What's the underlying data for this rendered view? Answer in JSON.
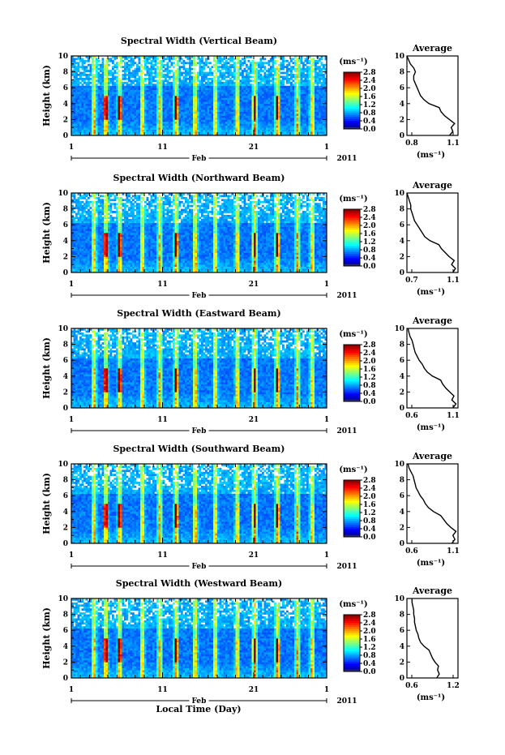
{
  "figure": {
    "xlabel": "Local Time (Day)",
    "month_label": "Feb",
    "year_label": "2011"
  },
  "chart_data": [
    {
      "type": "heatmap",
      "title": "Spectral Width (Vertical Beam)",
      "ylabel": "Height (km)",
      "ylim": [
        0,
        10
      ],
      "yticks": [
        "0",
        "2",
        "4",
        "6",
        "8",
        "10"
      ],
      "xlim": [
        1,
        29
      ],
      "xticks": [
        "1",
        "11",
        "21",
        "1"
      ],
      "colorbar": {
        "unit": "(ms⁻¹)",
        "range": [
          0,
          2.8
        ],
        "ticks": [
          "2.8",
          "2.4",
          "2.0",
          "1.6",
          "1.2",
          "0.8",
          "0.4",
          "0.0"
        ]
      },
      "average": {
        "title": "Average",
        "xlabel": "(ms⁻¹)",
        "xlim": [
          0.8,
          1.1
        ],
        "xticks": [
          "0.8",
          "1.1"
        ],
        "height": [
          0,
          0.5,
          1,
          1.5,
          2,
          2.5,
          3,
          3.5,
          4,
          4.5,
          5,
          5.5,
          6,
          6.5,
          7,
          7.5,
          8,
          8.5,
          9,
          9.5,
          10
        ],
        "value": [
          1.05,
          1.07,
          1.06,
          1.08,
          1.05,
          1.02,
          1.0,
          0.99,
          0.93,
          0.9,
          0.88,
          0.87,
          0.86,
          0.85,
          0.84,
          0.84,
          0.85,
          0.84,
          0.82,
          0.81,
          0.8
        ]
      }
    },
    {
      "type": "heatmap",
      "title": "Spectral Width (Northward Beam)",
      "ylabel": "Height (km)",
      "ylim": [
        0,
        10
      ],
      "yticks": [
        "0",
        "2",
        "4",
        "6",
        "8",
        "10"
      ],
      "xlim": [
        1,
        29
      ],
      "xticks": [
        "1",
        "11",
        "21",
        "1"
      ],
      "colorbar": {
        "unit": "(ms⁻¹)",
        "range": [
          0,
          2.8
        ],
        "ticks": [
          "2.8",
          "2.4",
          "2.0",
          "1.6",
          "1.2",
          "0.8",
          "0.4",
          "0.0"
        ]
      },
      "average": {
        "title": "Average",
        "xlabel": "(ms⁻¹)",
        "xlim": [
          0.7,
          1.1
        ],
        "xticks": [
          "0.7",
          "1.1"
        ],
        "height": [
          0,
          0.5,
          1,
          1.5,
          2,
          2.5,
          3,
          3.5,
          4,
          4.5,
          5,
          5.5,
          6,
          6.5,
          7,
          7.5,
          8,
          8.5,
          9,
          9.5,
          10
        ],
        "value": [
          1.06,
          1.08,
          1.05,
          1.07,
          1.03,
          1.0,
          0.97,
          0.95,
          0.88,
          0.84,
          0.82,
          0.8,
          0.78,
          0.76,
          0.75,
          0.74,
          0.73,
          0.73,
          0.72,
          0.71,
          0.7
        ]
      }
    },
    {
      "type": "heatmap",
      "title": "Spectral Width (Eastward Beam)",
      "ylabel": "Height (km)",
      "ylim": [
        0,
        10
      ],
      "yticks": [
        "0",
        "2",
        "4",
        "6",
        "8",
        "10"
      ],
      "xlim": [
        1,
        29
      ],
      "xticks": [
        "1",
        "11",
        "21",
        "1"
      ],
      "colorbar": {
        "unit": "(ms⁻¹)",
        "range": [
          0,
          2.8
        ],
        "ticks": [
          "2.8",
          "2.4",
          "2.0",
          "1.6",
          "1.2",
          "0.8",
          "0.4",
          "0.0"
        ]
      },
      "average": {
        "title": "Average",
        "xlabel": "(ms⁻¹)",
        "xlim": [
          0.6,
          1.1
        ],
        "xticks": [
          "0.6",
          "1.1"
        ],
        "height": [
          0,
          0.5,
          1,
          1.5,
          2,
          2.5,
          3,
          3.5,
          4,
          4.5,
          5,
          5.5,
          6,
          6.5,
          7,
          7.5,
          8,
          8.5,
          9,
          9.5,
          10
        ],
        "value": [
          1.05,
          1.08,
          1.04,
          1.06,
          1.02,
          0.98,
          0.95,
          0.93,
          0.85,
          0.8,
          0.77,
          0.75,
          0.72,
          0.7,
          0.68,
          0.67,
          0.66,
          0.65,
          0.63,
          0.62,
          0.61
        ]
      }
    },
    {
      "type": "heatmap",
      "title": "Spectral Width (Southward Beam)",
      "ylabel": "Height (km)",
      "ylim": [
        0,
        10
      ],
      "yticks": [
        "0",
        "2",
        "4",
        "6",
        "8",
        "10"
      ],
      "xlim": [
        1,
        29
      ],
      "xticks": [
        "1",
        "11",
        "21",
        "1"
      ],
      "colorbar": {
        "unit": "(ms⁻¹)",
        "range": [
          0,
          2.8
        ],
        "ticks": [
          "2.8",
          "2.4",
          "2.0",
          "1.6",
          "1.2",
          "0.8",
          "0.4",
          "0.0"
        ]
      },
      "average": {
        "title": "Average",
        "xlabel": "(ms⁻¹)",
        "xlim": [
          0.6,
          1.1
        ],
        "xticks": [
          "0.6",
          "1.1"
        ],
        "height": [
          0,
          0.5,
          1,
          1.5,
          2,
          2.5,
          3,
          3.5,
          4,
          4.5,
          5,
          5.5,
          6,
          6.5,
          7,
          7.5,
          8,
          8.5,
          9,
          9.5,
          10
        ],
        "value": [
          1.04,
          1.07,
          1.05,
          1.08,
          1.03,
          0.99,
          0.96,
          0.93,
          0.86,
          0.81,
          0.78,
          0.76,
          0.73,
          0.71,
          0.69,
          0.68,
          0.67,
          0.66,
          0.64,
          0.62,
          0.61
        ]
      }
    },
    {
      "type": "heatmap",
      "title": "Spectral Width (Westward Beam)",
      "ylabel": "Height (km)",
      "ylim": [
        0,
        10
      ],
      "yticks": [
        "0",
        "2",
        "4",
        "6",
        "8",
        "10"
      ],
      "xlim": [
        1,
        29
      ],
      "xticks": [
        "1",
        "11",
        "21",
        "1"
      ],
      "colorbar": {
        "unit": "(ms⁻¹)",
        "range": [
          0,
          2.8
        ],
        "ticks": [
          "2.8",
          "2.4",
          "2.0",
          "1.6",
          "1.2",
          "0.8",
          "0.4",
          "0.0"
        ]
      },
      "average": {
        "title": "Average",
        "xlabel": "(ms⁻¹)",
        "xlim": [
          0.6,
          1.2
        ],
        "xticks": [
          "0.6",
          "1.2"
        ],
        "height": [
          0,
          0.5,
          1,
          1.5,
          2,
          2.5,
          3,
          3.5,
          4,
          4.5,
          5,
          5.5,
          6,
          6.5,
          7,
          7.5,
          8,
          8.5,
          9,
          9.5,
          10
        ],
        "value": [
          0.95,
          0.98,
          0.96,
          0.97,
          0.93,
          0.9,
          0.88,
          0.86,
          0.8,
          0.76,
          0.74,
          0.73,
          0.71,
          0.7,
          0.69,
          0.69,
          0.68,
          0.68,
          0.67,
          0.66,
          0.66
        ]
      }
    }
  ]
}
